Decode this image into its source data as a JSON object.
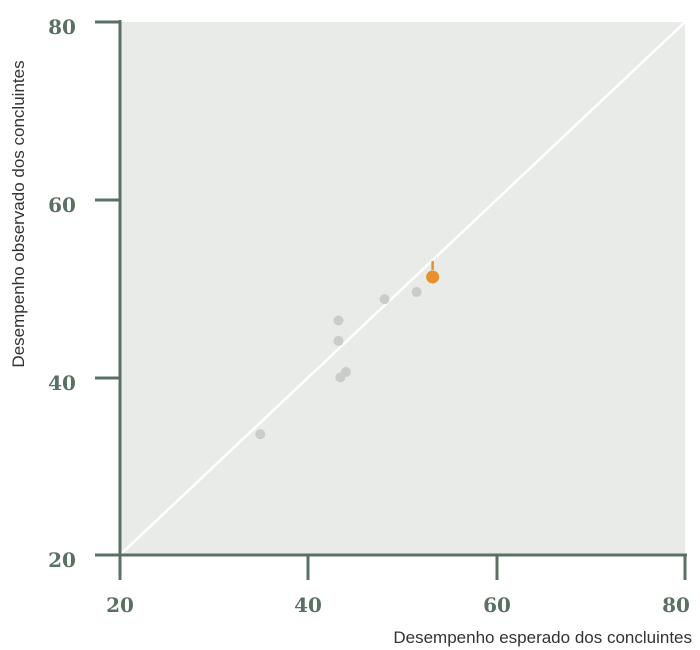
{
  "chart_data": {
    "type": "scatter",
    "title": "",
    "xlabel": "Desempenho esperado dos concluintes",
    "ylabel": "Desempenho observado dos concluintes",
    "xlim": [
      20,
      80
    ],
    "ylim": [
      20,
      80
    ],
    "x_ticks": [
      "20",
      "40",
      "60",
      "80"
    ],
    "y_ticks": [
      "20",
      "40",
      "60",
      "80"
    ],
    "grid": false,
    "reference_line": {
      "from": [
        20,
        20
      ],
      "to": [
        80,
        80
      ],
      "color": "#ffffff"
    },
    "colors": {
      "plot_bg": "#e8ebe7",
      "axis": "#5a7063",
      "points": "#c9ccc8",
      "highlight": "#e8902a"
    },
    "points": [
      {
        "x": 34.9,
        "y": 33.6
      },
      {
        "x": 43.2,
        "y": 46.4
      },
      {
        "x": 43.2,
        "y": 44.1
      },
      {
        "x": 43.4,
        "y": 40.0
      },
      {
        "x": 44.0,
        "y": 40.6
      },
      {
        "x": 48.1,
        "y": 48.8
      },
      {
        "x": 51.5,
        "y": 49.6
      }
    ],
    "highlight": {
      "x": 53.2,
      "y": 51.3
    }
  }
}
